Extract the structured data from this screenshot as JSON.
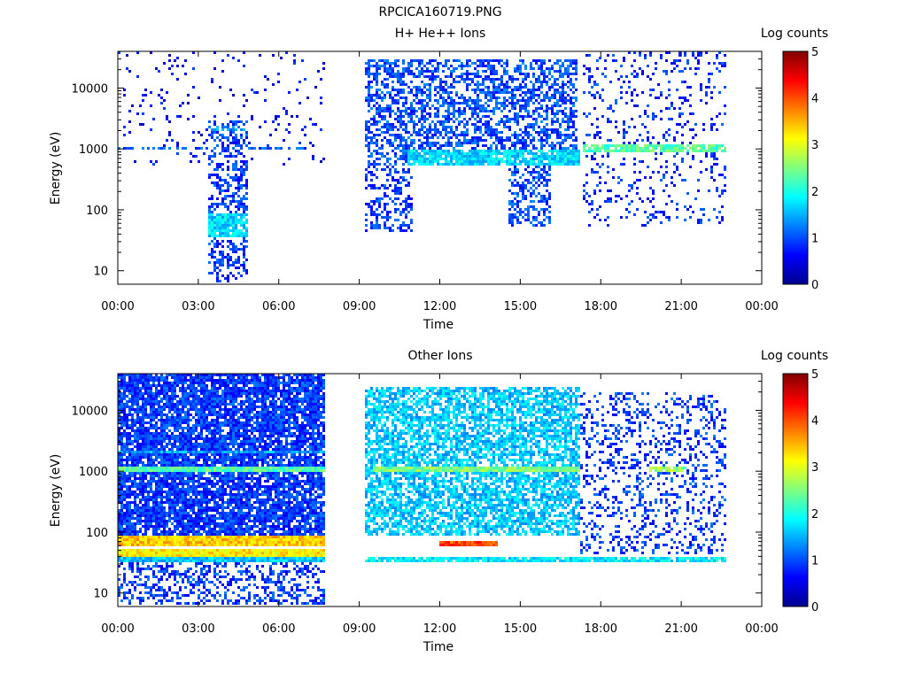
{
  "figure_title": "RPCICA160719.PNG",
  "chart_data": [
    {
      "type": "heatmap",
      "title": "H+ He++ Ions",
      "xlabel": "Time",
      "ylabel": "Energy (eV)",
      "x_ticks": [
        "00:00",
        "03:00",
        "06:00",
        "09:00",
        "12:00",
        "15:00",
        "18:00",
        "21:00",
        "00:00"
      ],
      "x_range_hours": [
        0,
        24
      ],
      "y_scale": "log",
      "y_ticks": [
        10,
        100,
        1000,
        10000
      ],
      "y_tick_labels": [
        "10",
        "100",
        "1000",
        "10000"
      ],
      "ylim": [
        6,
        40000
      ],
      "colorbar": {
        "label": "Log counts",
        "range": [
          0,
          5
        ],
        "ticks": [
          "0",
          "1",
          "2",
          "3",
          "4",
          "5"
        ]
      },
      "features": [
        {
          "desc": "sparse ions",
          "t": [
            0,
            7.7
          ],
          "e": [
            500,
            40000
          ],
          "level": 0.6,
          "density": 0.05
        },
        {
          "desc": "band ~1000 eV",
          "t": [
            0,
            7.7
          ],
          "e": [
            900,
            1100
          ],
          "level": 1.0,
          "density": 0.6
        },
        {
          "desc": "dense low-energy column",
          "t": [
            3.4,
            4.9
          ],
          "e": [
            6,
            3000
          ],
          "level": 0.9,
          "density": 0.45
        },
        {
          "desc": "band ~60 eV",
          "t": [
            3.4,
            4.9
          ],
          "e": [
            35,
            80
          ],
          "level": 1.7,
          "density": 0.9
        },
        {
          "desc": "band ~2000 eV",
          "t": [
            3.4,
            4.9
          ],
          "e": [
            2000,
            2400
          ],
          "level": 1.3,
          "density": 0.8
        },
        {
          "desc": "broad plasma",
          "t": [
            9.2,
            17.2
          ],
          "e": [
            500,
            30000
          ],
          "level": 1.0,
          "density": 0.55
        },
        {
          "desc": "band ~700 eV",
          "t": [
            10.8,
            17.3
          ],
          "e": [
            500,
            900
          ],
          "level": 1.7,
          "density": 0.9
        },
        {
          "desc": "low-energy extension",
          "t": [
            9.2,
            11.0
          ],
          "e": [
            40,
            500
          ],
          "level": 0.9,
          "density": 0.4
        },
        {
          "desc": "low-energy extension",
          "t": [
            14.6,
            16.2
          ],
          "e": [
            50,
            500
          ],
          "level": 1.0,
          "density": 0.5
        },
        {
          "desc": "intermittent bursts",
          "t": [
            17.4,
            22.7
          ],
          "e": [
            50,
            40000
          ],
          "level": 0.8,
          "density": 0.15
        },
        {
          "desc": "band ~1000 eV",
          "t": [
            17.4,
            22.7
          ],
          "e": [
            850,
            1150
          ],
          "level": 2.3,
          "density": 0.8
        }
      ]
    },
    {
      "type": "heatmap",
      "title": "Other Ions",
      "xlabel": "Time",
      "ylabel": "Energy (eV)",
      "x_ticks": [
        "00:00",
        "03:00",
        "06:00",
        "09:00",
        "12:00",
        "15:00",
        "18:00",
        "21:00",
        "00:00"
      ],
      "x_range_hours": [
        0,
        24
      ],
      "y_scale": "log",
      "y_ticks": [
        10,
        100,
        1000,
        10000
      ],
      "y_tick_labels": [
        "10",
        "100",
        "1000",
        "10000"
      ],
      "ylim": [
        6,
        40000
      ],
      "colorbar": {
        "label": "Log counts",
        "range": [
          0,
          5
        ],
        "ticks": [
          "0",
          "1",
          "2",
          "3",
          "4",
          "5"
        ]
      },
      "features": [
        {
          "desc": "background",
          "t": [
            0,
            7.7
          ],
          "e": [
            80,
            40000
          ],
          "level": 0.9,
          "density": 0.85
        },
        {
          "desc": "band ~1000 eV",
          "t": [
            0,
            7.7
          ],
          "e": [
            900,
            1150
          ],
          "level": 2.3,
          "density": 1.0
        },
        {
          "desc": "band ~2000 eV",
          "t": [
            0,
            7.7
          ],
          "e": [
            1900,
            2200
          ],
          "level": 1.4,
          "density": 1.0
        },
        {
          "desc": "band ~60 eV",
          "t": [
            0,
            7.7
          ],
          "e": [
            55,
            80
          ],
          "level": 3.4,
          "density": 1.0
        },
        {
          "desc": "band ~40 eV",
          "t": [
            0,
            7.7
          ],
          "e": [
            36,
            48
          ],
          "level": 3.2,
          "density": 1.0
        },
        {
          "desc": "band ~30 eV",
          "t": [
            0,
            7.7
          ],
          "e": [
            30,
            36
          ],
          "level": 1.6,
          "density": 1.0
        },
        {
          "desc": "low-energy streaks",
          "t": [
            0,
            7.7
          ],
          "e": [
            6,
            30
          ],
          "level": 0.9,
          "density": 0.4
        },
        {
          "desc": "broad plasma",
          "t": [
            9.2,
            17.3
          ],
          "e": [
            80,
            25000
          ],
          "level": 1.6,
          "density": 0.7
        },
        {
          "desc": "band ~1000 eV",
          "t": [
            9.5,
            17.3
          ],
          "e": [
            900,
            1150
          ],
          "level": 2.5,
          "density": 1.0
        },
        {
          "desc": "band ~60 eV",
          "t": [
            12.0,
            14.2
          ],
          "e": [
            55,
            70
          ],
          "level": 4.0,
          "density": 1.0
        },
        {
          "desc": "band ~30 eV",
          "t": [
            9.2,
            22.7
          ],
          "e": [
            30,
            36
          ],
          "level": 1.8,
          "density": 0.9
        },
        {
          "desc": "scattered",
          "t": [
            17.3,
            22.7
          ],
          "e": [
            40,
            20000
          ],
          "level": 0.9,
          "density": 0.25
        },
        {
          "desc": "band ~1000 eV",
          "t": [
            19.8,
            21.2
          ],
          "e": [
            900,
            1150
          ],
          "level": 2.6,
          "density": 0.9
        }
      ]
    }
  ]
}
